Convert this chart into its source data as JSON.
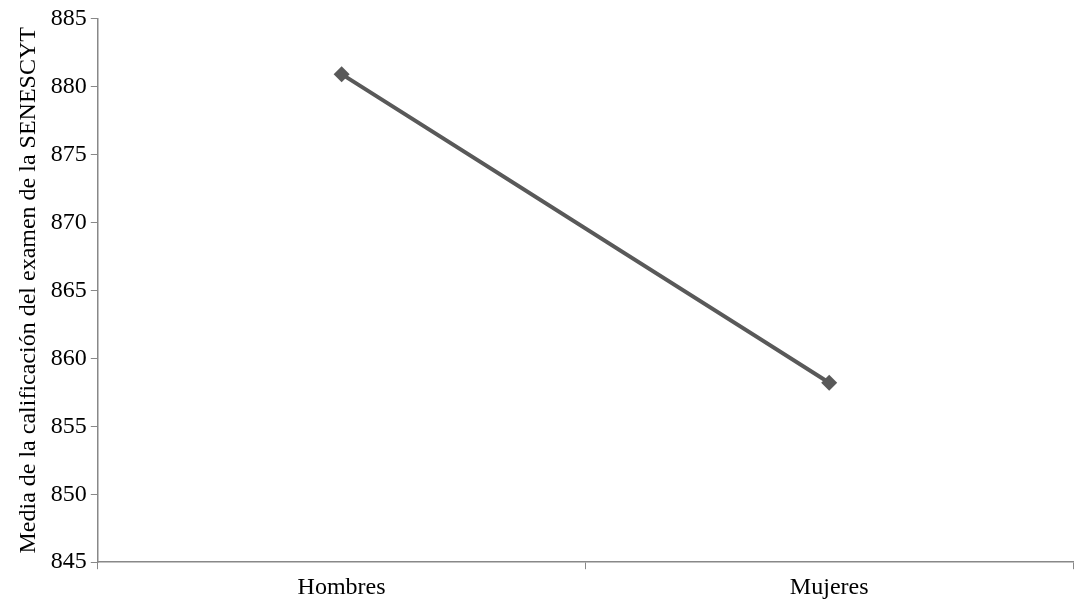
{
  "chart_data": {
    "type": "line",
    "ylabel": "Media de la calificación del examen de la SENESCYT",
    "categories": [
      "Hombres",
      "Mujeres"
    ],
    "series": [
      {
        "color": "#595959",
        "values": [
          880.9,
          858.2
        ]
      }
    ],
    "ylim": [
      845,
      885
    ],
    "yticks": [
      845,
      850,
      855,
      860,
      865,
      870,
      875,
      880,
      885
    ],
    "grid": false,
    "legend": false,
    "marker": "diamond",
    "line_style": "solid"
  }
}
